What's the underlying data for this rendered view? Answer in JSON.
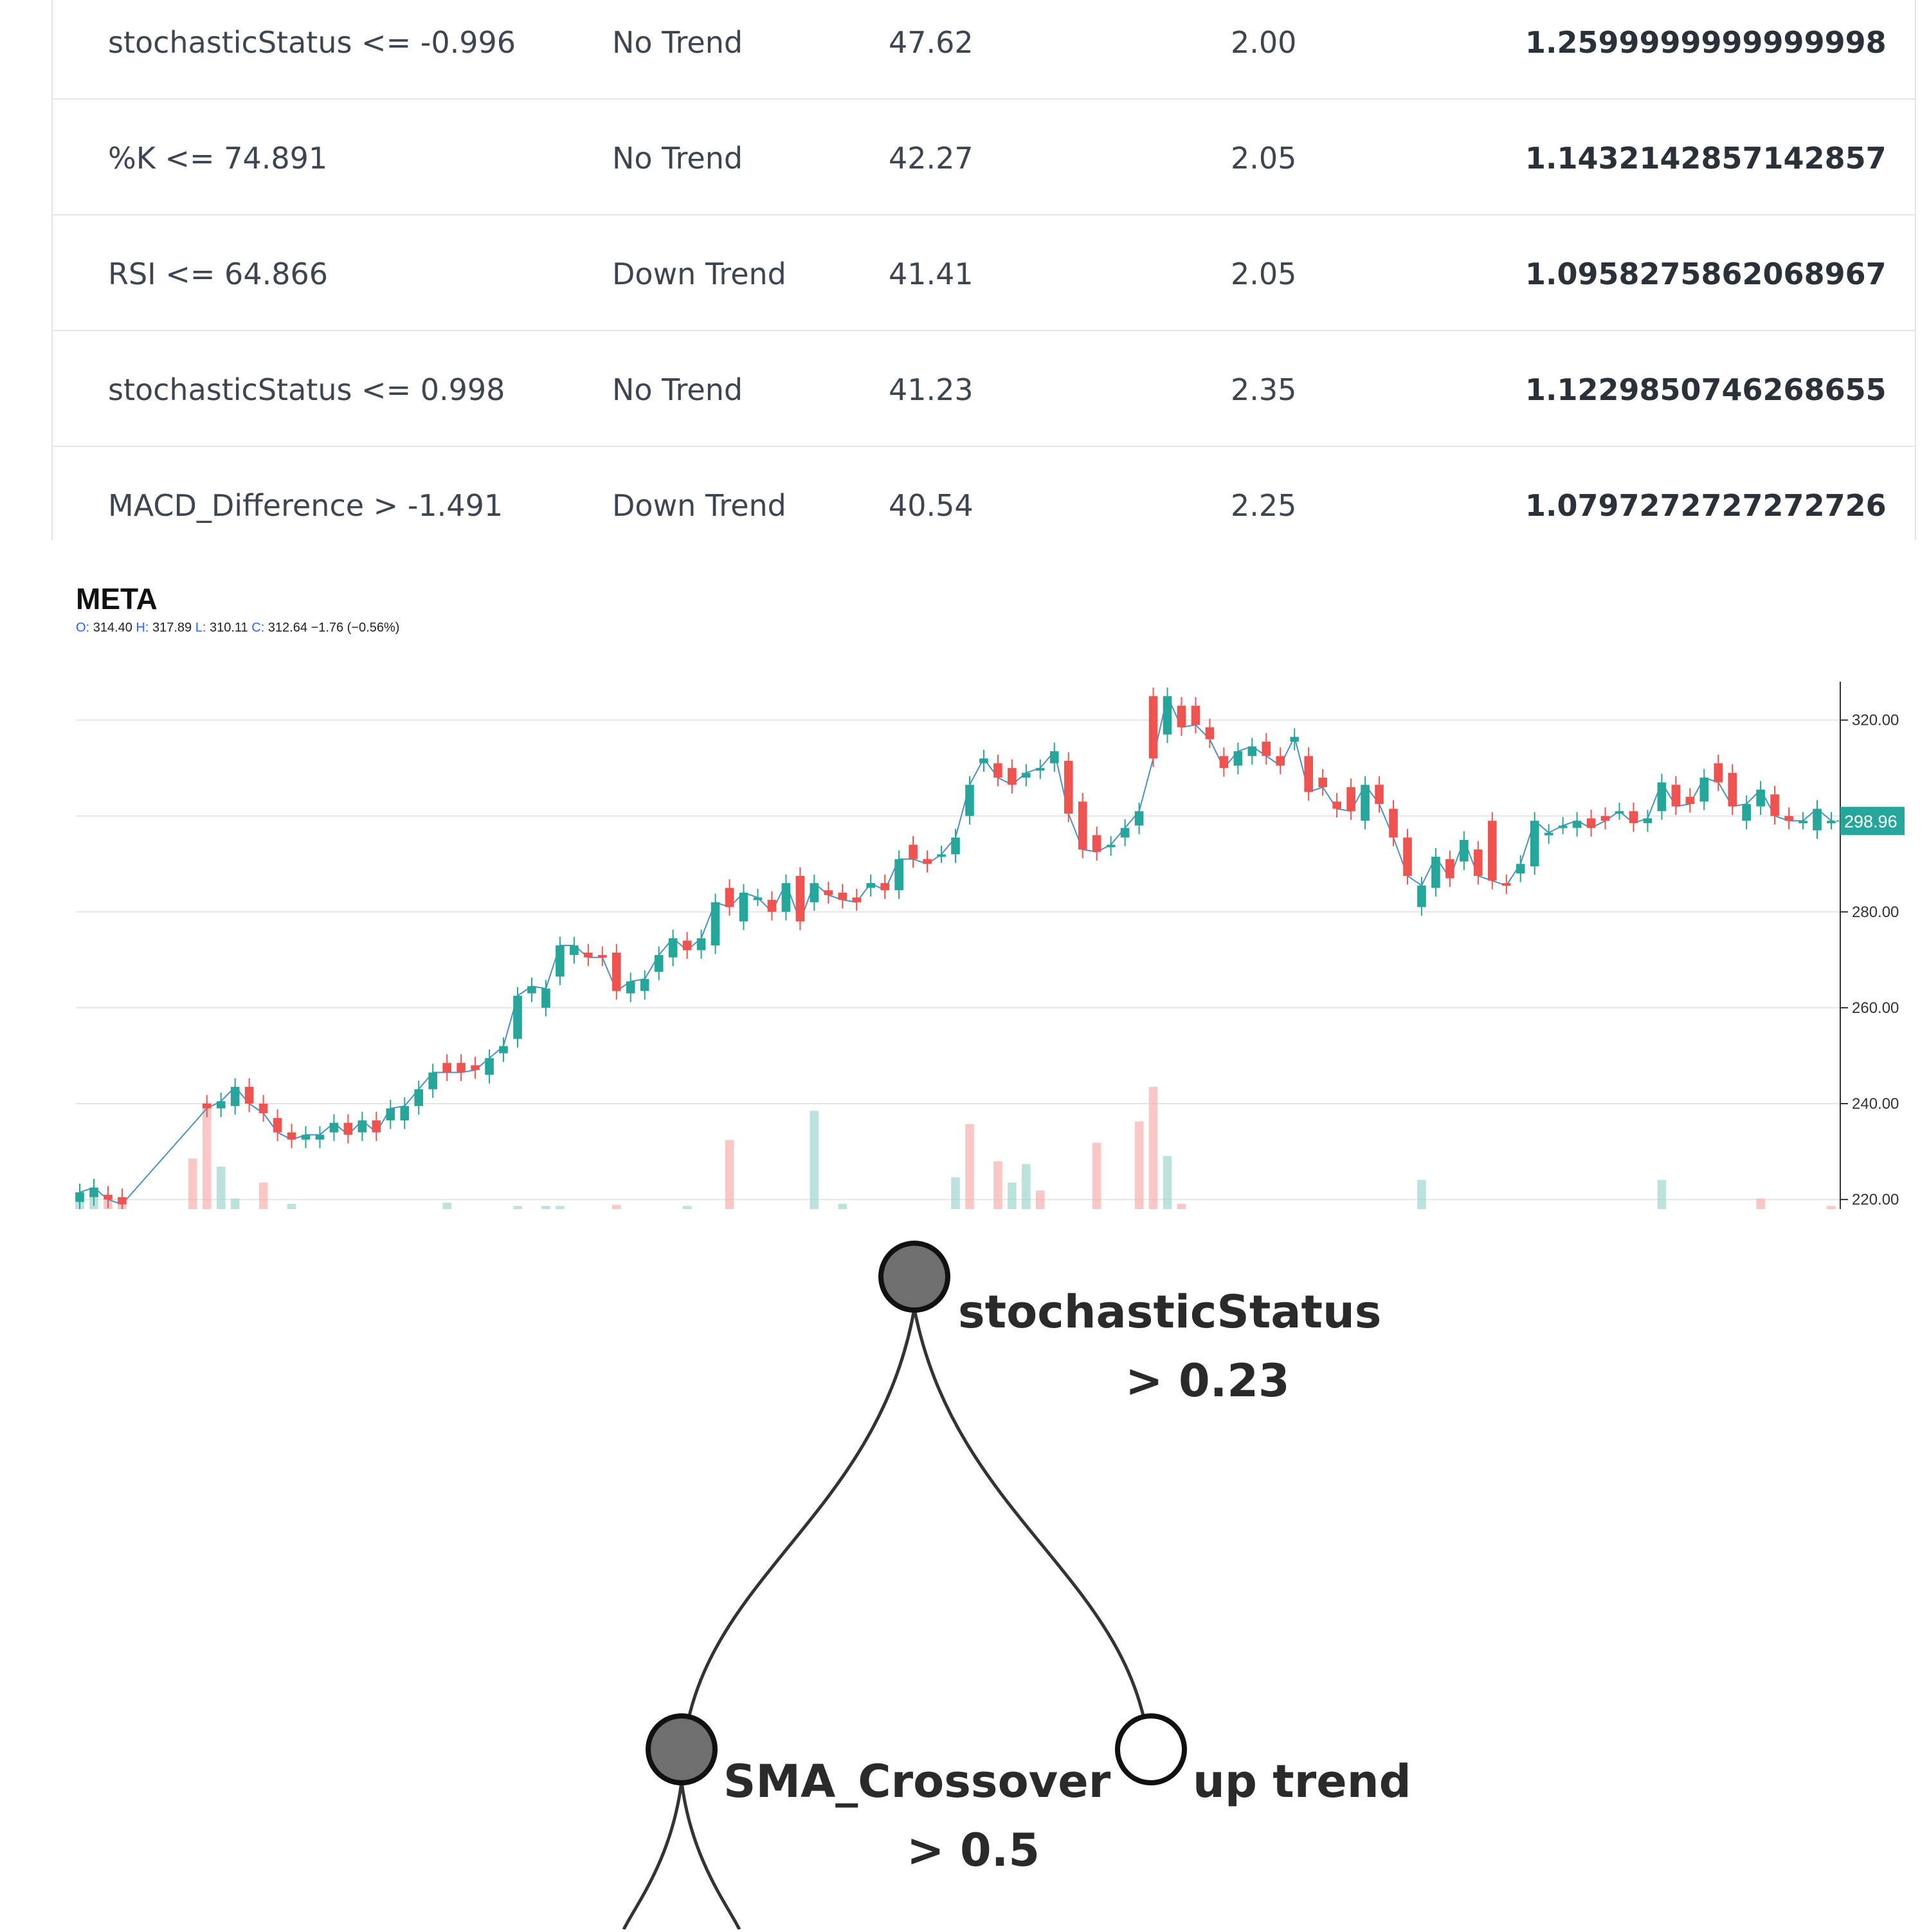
{
  "rules_table": {
    "rows": [
      {
        "condition": "stochasticStatus <= -0.996",
        "trend": "No Trend",
        "score": "47.62",
        "ratio": "2.00",
        "value": "1.2599999999999998"
      },
      {
        "condition": "%K <= 74.891",
        "trend": "No Trend",
        "score": "42.27",
        "ratio": "2.05",
        "value": "1.1432142857142857"
      },
      {
        "condition": "RSI <= 64.866",
        "trend": "Down Trend",
        "score": "41.41",
        "ratio": "2.05",
        "value": "1.0958275862068967"
      },
      {
        "condition": "stochasticStatus <= 0.998",
        "trend": "No Trend",
        "score": "41.23",
        "ratio": "2.35",
        "value": "1.1229850746268655"
      },
      {
        "condition": "MACD_Difference > -1.491",
        "trend": "Down Trend",
        "score": "40.54",
        "ratio": "2.25",
        "value": "1.0797272727272726"
      }
    ]
  },
  "chart": {
    "symbol": "META",
    "ohlc": {
      "o_label": "O:",
      "o": "314.40",
      "h_label": "H:",
      "h": "317.89",
      "l_label": "L:",
      "l": "310.11",
      "c_label": "C:",
      "c": "312.64",
      "change": "−1.76 (−0.56%)"
    },
    "last_price_label": "298.96",
    "colors": {
      "up": "#26a69a",
      "down": "#ef5350",
      "line": "#4a90c8",
      "grid": "#e6e6e6"
    }
  },
  "chart_data": {
    "type": "candlestick",
    "title": "META",
    "y_ticks": [
      "320.00",
      "300.00",
      "280.00",
      "260.00",
      "240.00",
      "220.00"
    ],
    "ylim": [
      218,
      328
    ],
    "last_price": 298.96,
    "candles": [
      {
        "o": 219.5,
        "c": 221.5
      },
      {
        "o": 220.5,
        "c": 222.5
      },
      {
        "o": 221,
        "c": 220
      },
      {
        "o": 220.5,
        "c": 219
      },
      {
        "o": null,
        "c": null
      },
      {
        "o": null,
        "c": null
      },
      {
        "o": null,
        "c": null
      },
      {
        "o": null,
        "c": null
      },
      {
        "o": null,
        "c": null
      },
      {
        "o": 240,
        "c": 239
      },
      {
        "o": 239,
        "c": 240.5
      },
      {
        "o": 239.5,
        "c": 243.5
      },
      {
        "o": 243.5,
        "c": 240
      },
      {
        "o": 240,
        "c": 238
      },
      {
        "o": 237,
        "c": 234
      },
      {
        "o": 234,
        "c": 232.5
      },
      {
        "o": 232.5,
        "c": 233.5
      },
      {
        "o": 232.5,
        "c": 233.5
      },
      {
        "o": 234,
        "c": 236
      },
      {
        "o": 236,
        "c": 233.5
      },
      {
        "o": 234,
        "c": 236.5
      },
      {
        "o": 236.5,
        "c": 234
      },
      {
        "o": 236.5,
        "c": 239
      },
      {
        "o": 236.5,
        "c": 239.5
      },
      {
        "o": 239.5,
        "c": 243
      },
      {
        "o": 243,
        "c": 246.5
      },
      {
        "o": 248.5,
        "c": 246.5
      },
      {
        "o": 248.5,
        "c": 246.5
      },
      {
        "o": 248,
        "c": 247
      },
      {
        "o": 246,
        "c": 249.5
      },
      {
        "o": 250.5,
        "c": 252
      },
      {
        "o": 253.5,
        "c": 262.5
      },
      {
        "o": 263,
        "c": 264.5
      },
      {
        "o": 260,
        "c": 264
      },
      {
        "o": 266.5,
        "c": 273
      },
      {
        "o": 271,
        "c": 273
      },
      {
        "o": 271.5,
        "c": 270.5
      },
      {
        "o": 271,
        "c": 270.5
      },
      {
        "o": 271.5,
        "c": 263.5
      },
      {
        "o": 263,
        "c": 265.5
      },
      {
        "o": 263.5,
        "c": 266
      },
      {
        "o": 267.5,
        "c": 271
      },
      {
        "o": 270.5,
        "c": 274.5
      },
      {
        "o": 274,
        "c": 272
      },
      {
        "o": 272,
        "c": 274.5
      },
      {
        "o": 273,
        "c": 282
      },
      {
        "o": 285,
        "c": 281
      },
      {
        "o": 278,
        "c": 284
      },
      {
        "o": 283,
        "c": 283
      },
      {
        "o": 282.5,
        "c": 280
      },
      {
        "o": 280,
        "c": 286
      },
      {
        "o": 287.5,
        "c": 278
      },
      {
        "o": 282,
        "c": 286
      },
      {
        "o": 284.5,
        "c": 283.5
      },
      {
        "o": 284,
        "c": 282.5
      },
      {
        "o": 283,
        "c": 282
      },
      {
        "o": 285,
        "c": 286
      },
      {
        "o": 286,
        "c": 284.5
      },
      {
        "o": 284.5,
        "c": 291
      },
      {
        "o": 294,
        "c": 291
      },
      {
        "o": 291,
        "c": 290
      },
      {
        "o": 292,
        "c": 292
      },
      {
        "o": 292,
        "c": 295.5
      },
      {
        "o": 300,
        "c": 306.5
      },
      {
        "o": 311,
        "c": 312
      },
      {
        "o": 311,
        "c": 308
      },
      {
        "o": 310,
        "c": 306.5
      },
      {
        "o": 308,
        "c": 309
      },
      {
        "o": 309.5,
        "c": 310
      },
      {
        "o": 311,
        "c": 313.5
      },
      {
        "o": 311.5,
        "c": 300.5
      },
      {
        "o": 303,
        "c": 293
      },
      {
        "o": 296,
        "c": 292.5
      },
      {
        "o": 293.5,
        "c": 294
      },
      {
        "o": 295.5,
        "c": 297.5
      },
      {
        "o": 298,
        "c": 301
      },
      {
        "o": 325,
        "c": 312
      },
      {
        "o": 317,
        "c": 325
      },
      {
        "o": 323,
        "c": 318.5
      },
      {
        "o": 323,
        "c": 319
      },
      {
        "o": 318.5,
        "c": 316
      },
      {
        "o": 312.5,
        "c": 310
      },
      {
        "o": 310.5,
        "c": 313.5
      },
      {
        "o": 312.5,
        "c": 314.5
      },
      {
        "o": 315.5,
        "c": 312.5
      },
      {
        "o": 312.5,
        "c": 310.5
      },
      {
        "o": 315.5,
        "c": 316.5
      },
      {
        "o": 312.5,
        "c": 305
      },
      {
        "o": 308,
        "c": 306
      },
      {
        "o": 303,
        "c": 301.5
      },
      {
        "o": 306,
        "c": 301
      },
      {
        "o": 299,
        "c": 306.5
      },
      {
        "o": 306.5,
        "c": 302.5
      },
      {
        "o": 301.5,
        "c": 295.5
      },
      {
        "o": 295.5,
        "c": 287.5
      },
      {
        "o": 281,
        "c": 285.5
      },
      {
        "o": 285,
        "c": 291.5
      },
      {
        "o": 291,
        "c": 287
      },
      {
        "o": 290.5,
        "c": 295
      },
      {
        "o": 293,
        "c": 287.5
      },
      {
        "o": 299,
        "c": 286.5
      },
      {
        "o": 286,
        "c": 285.5
      },
      {
        "o": 288,
        "c": 290
      },
      {
        "o": 289.5,
        "c": 299
      },
      {
        "o": 296,
        "c": 296.5
      },
      {
        "o": 298,
        "c": 298
      },
      {
        "o": 297.5,
        "c": 299
      },
      {
        "o": 299.5,
        "c": 297.5
      },
      {
        "o": 300,
        "c": 299
      },
      {
        "o": 301,
        "c": 301
      },
      {
        "o": 301,
        "c": 298.5
      },
      {
        "o": 298.5,
        "c": 299.5
      },
      {
        "o": 301,
        "c": 307
      },
      {
        "o": 306.5,
        "c": 302
      },
      {
        "o": 304,
        "c": 302.5
      },
      {
        "o": 303,
        "c": 308
      },
      {
        "o": 311,
        "c": 307
      },
      {
        "o": 309,
        "c": 302
      },
      {
        "o": 299,
        "c": 302.5
      },
      {
        "o": 302,
        "c": 305.5
      },
      {
        "o": 304.5,
        "c": 300
      },
      {
        "o": 300,
        "c": 299
      },
      {
        "o": 299,
        "c": 299
      },
      {
        "o": 297,
        "c": 301.5
      },
      {
        "o": 299,
        "c": 299
      }
    ],
    "volume": [
      {
        "v": 0.15,
        "dir": "up"
      },
      {
        "v": 0.3,
        "dir": "up"
      },
      {
        "v": 0.2,
        "dir": "down"
      },
      {
        "v": 0.18,
        "dir": "down"
      },
      {
        "v": 0,
        "dir": "up"
      },
      {
        "v": 0,
        "dir": "up"
      },
      {
        "v": 0,
        "dir": "up"
      },
      {
        "v": 0,
        "dir": "up"
      },
      {
        "v": 0.95,
        "dir": "down"
      },
      {
        "v": 2.0,
        "dir": "down"
      },
      {
        "v": 0.8,
        "dir": "up"
      },
      {
        "v": 0.2,
        "dir": "up"
      },
      {
        "v": 0,
        "dir": "up"
      },
      {
        "v": 0.5,
        "dir": "down"
      },
      {
        "v": 0,
        "dir": "up"
      },
      {
        "v": 0.1,
        "dir": "up"
      },
      {
        "v": 0,
        "dir": "up"
      },
      {
        "v": 0,
        "dir": "up"
      },
      {
        "v": 0,
        "dir": "up"
      },
      {
        "v": 0,
        "dir": "up"
      },
      {
        "v": 0,
        "dir": "up"
      },
      {
        "v": 0,
        "dir": "up"
      },
      {
        "v": 0,
        "dir": "up"
      },
      {
        "v": 0,
        "dir": "up"
      },
      {
        "v": 0,
        "dir": "up"
      },
      {
        "v": 0,
        "dir": "up"
      },
      {
        "v": 0.12,
        "dir": "up"
      },
      {
        "v": 0,
        "dir": "up"
      },
      {
        "v": 0,
        "dir": "up"
      },
      {
        "v": 0,
        "dir": "up"
      },
      {
        "v": 0,
        "dir": "up"
      },
      {
        "v": 0.06,
        "dir": "up"
      },
      {
        "v": 0,
        "dir": "up"
      },
      {
        "v": 0.06,
        "dir": "up"
      },
      {
        "v": 0.06,
        "dir": "up"
      },
      {
        "v": 0,
        "dir": "up"
      },
      {
        "v": 0,
        "dir": "up"
      },
      {
        "v": 0,
        "dir": "up"
      },
      {
        "v": 0.08,
        "dir": "down"
      },
      {
        "v": 0,
        "dir": "up"
      },
      {
        "v": 0,
        "dir": "up"
      },
      {
        "v": 0,
        "dir": "up"
      },
      {
        "v": 0,
        "dir": "up"
      },
      {
        "v": 0.06,
        "dir": "up"
      },
      {
        "v": 0,
        "dir": "up"
      },
      {
        "v": 0,
        "dir": "up"
      },
      {
        "v": 1.3,
        "dir": "down"
      },
      {
        "v": 0,
        "dir": "up"
      },
      {
        "v": 0,
        "dir": "up"
      },
      {
        "v": 0,
        "dir": "up"
      },
      {
        "v": 0,
        "dir": "up"
      },
      {
        "v": 0,
        "dir": "up"
      },
      {
        "v": 1.85,
        "dir": "up"
      },
      {
        "v": 0,
        "dir": "up"
      },
      {
        "v": 0.1,
        "dir": "up"
      },
      {
        "v": 0,
        "dir": "up"
      },
      {
        "v": 0,
        "dir": "up"
      },
      {
        "v": 0,
        "dir": "up"
      },
      {
        "v": 0,
        "dir": "up"
      },
      {
        "v": 0,
        "dir": "up"
      },
      {
        "v": 0,
        "dir": "up"
      },
      {
        "v": 0,
        "dir": "up"
      },
      {
        "v": 0.6,
        "dir": "up"
      },
      {
        "v": 1.6,
        "dir": "down"
      },
      {
        "v": 0,
        "dir": "up"
      },
      {
        "v": 0.9,
        "dir": "down"
      },
      {
        "v": 0.5,
        "dir": "up"
      },
      {
        "v": 0.85,
        "dir": "up"
      },
      {
        "v": 0.35,
        "dir": "down"
      },
      {
        "v": 0,
        "dir": "up"
      },
      {
        "v": 0,
        "dir": "up"
      },
      {
        "v": 0,
        "dir": "up"
      },
      {
        "v": 1.25,
        "dir": "down"
      },
      {
        "v": 0,
        "dir": "up"
      },
      {
        "v": 0,
        "dir": "up"
      },
      {
        "v": 1.65,
        "dir": "down"
      },
      {
        "v": 2.3,
        "dir": "down"
      },
      {
        "v": 1.0,
        "dir": "up"
      },
      {
        "v": 0.1,
        "dir": "down"
      },
      {
        "v": 0,
        "dir": "up"
      },
      {
        "v": 0,
        "dir": "up"
      },
      {
        "v": 0,
        "dir": "up"
      },
      {
        "v": 0,
        "dir": "up"
      },
      {
        "v": 0,
        "dir": "up"
      },
      {
        "v": 0,
        "dir": "up"
      },
      {
        "v": 0,
        "dir": "up"
      },
      {
        "v": 0,
        "dir": "up"
      },
      {
        "v": 0,
        "dir": "up"
      },
      {
        "v": 0,
        "dir": "up"
      },
      {
        "v": 0,
        "dir": "up"
      },
      {
        "v": 0,
        "dir": "up"
      },
      {
        "v": 0,
        "dir": "up"
      },
      {
        "v": 0,
        "dir": "up"
      },
      {
        "v": 0,
        "dir": "up"
      },
      {
        "v": 0,
        "dir": "up"
      },
      {
        "v": 0.55,
        "dir": "up"
      },
      {
        "v": 0,
        "dir": "up"
      },
      {
        "v": 0,
        "dir": "up"
      },
      {
        "v": 0,
        "dir": "up"
      },
      {
        "v": 0,
        "dir": "up"
      },
      {
        "v": 0,
        "dir": "up"
      },
      {
        "v": 0,
        "dir": "up"
      },
      {
        "v": 0,
        "dir": "up"
      },
      {
        "v": 0,
        "dir": "up"
      },
      {
        "v": 0,
        "dir": "up"
      },
      {
        "v": 0,
        "dir": "up"
      },
      {
        "v": 0,
        "dir": "up"
      },
      {
        "v": 0,
        "dir": "up"
      },
      {
        "v": 0,
        "dir": "up"
      },
      {
        "v": 0,
        "dir": "up"
      },
      {
        "v": 0,
        "dir": "up"
      },
      {
        "v": 0,
        "dir": "up"
      },
      {
        "v": 0.55,
        "dir": "up"
      },
      {
        "v": 0,
        "dir": "up"
      },
      {
        "v": 0,
        "dir": "up"
      },
      {
        "v": 0,
        "dir": "up"
      },
      {
        "v": 0,
        "dir": "up"
      },
      {
        "v": 0,
        "dir": "up"
      },
      {
        "v": 0,
        "dir": "up"
      },
      {
        "v": 0.2,
        "dir": "down"
      },
      {
        "v": 0,
        "dir": "up"
      },
      {
        "v": 0,
        "dir": "up"
      },
      {
        "v": 0,
        "dir": "up"
      },
      {
        "v": 0,
        "dir": "up"
      },
      {
        "v": 0.06,
        "dir": "down"
      }
    ]
  },
  "decision_tree": {
    "root": {
      "label": "stochasticStatus",
      "condition": ">  0.23"
    },
    "left": {
      "label": "SMA_Crossover",
      "condition": ">  0.5"
    },
    "right": {
      "label": "up trend"
    }
  }
}
